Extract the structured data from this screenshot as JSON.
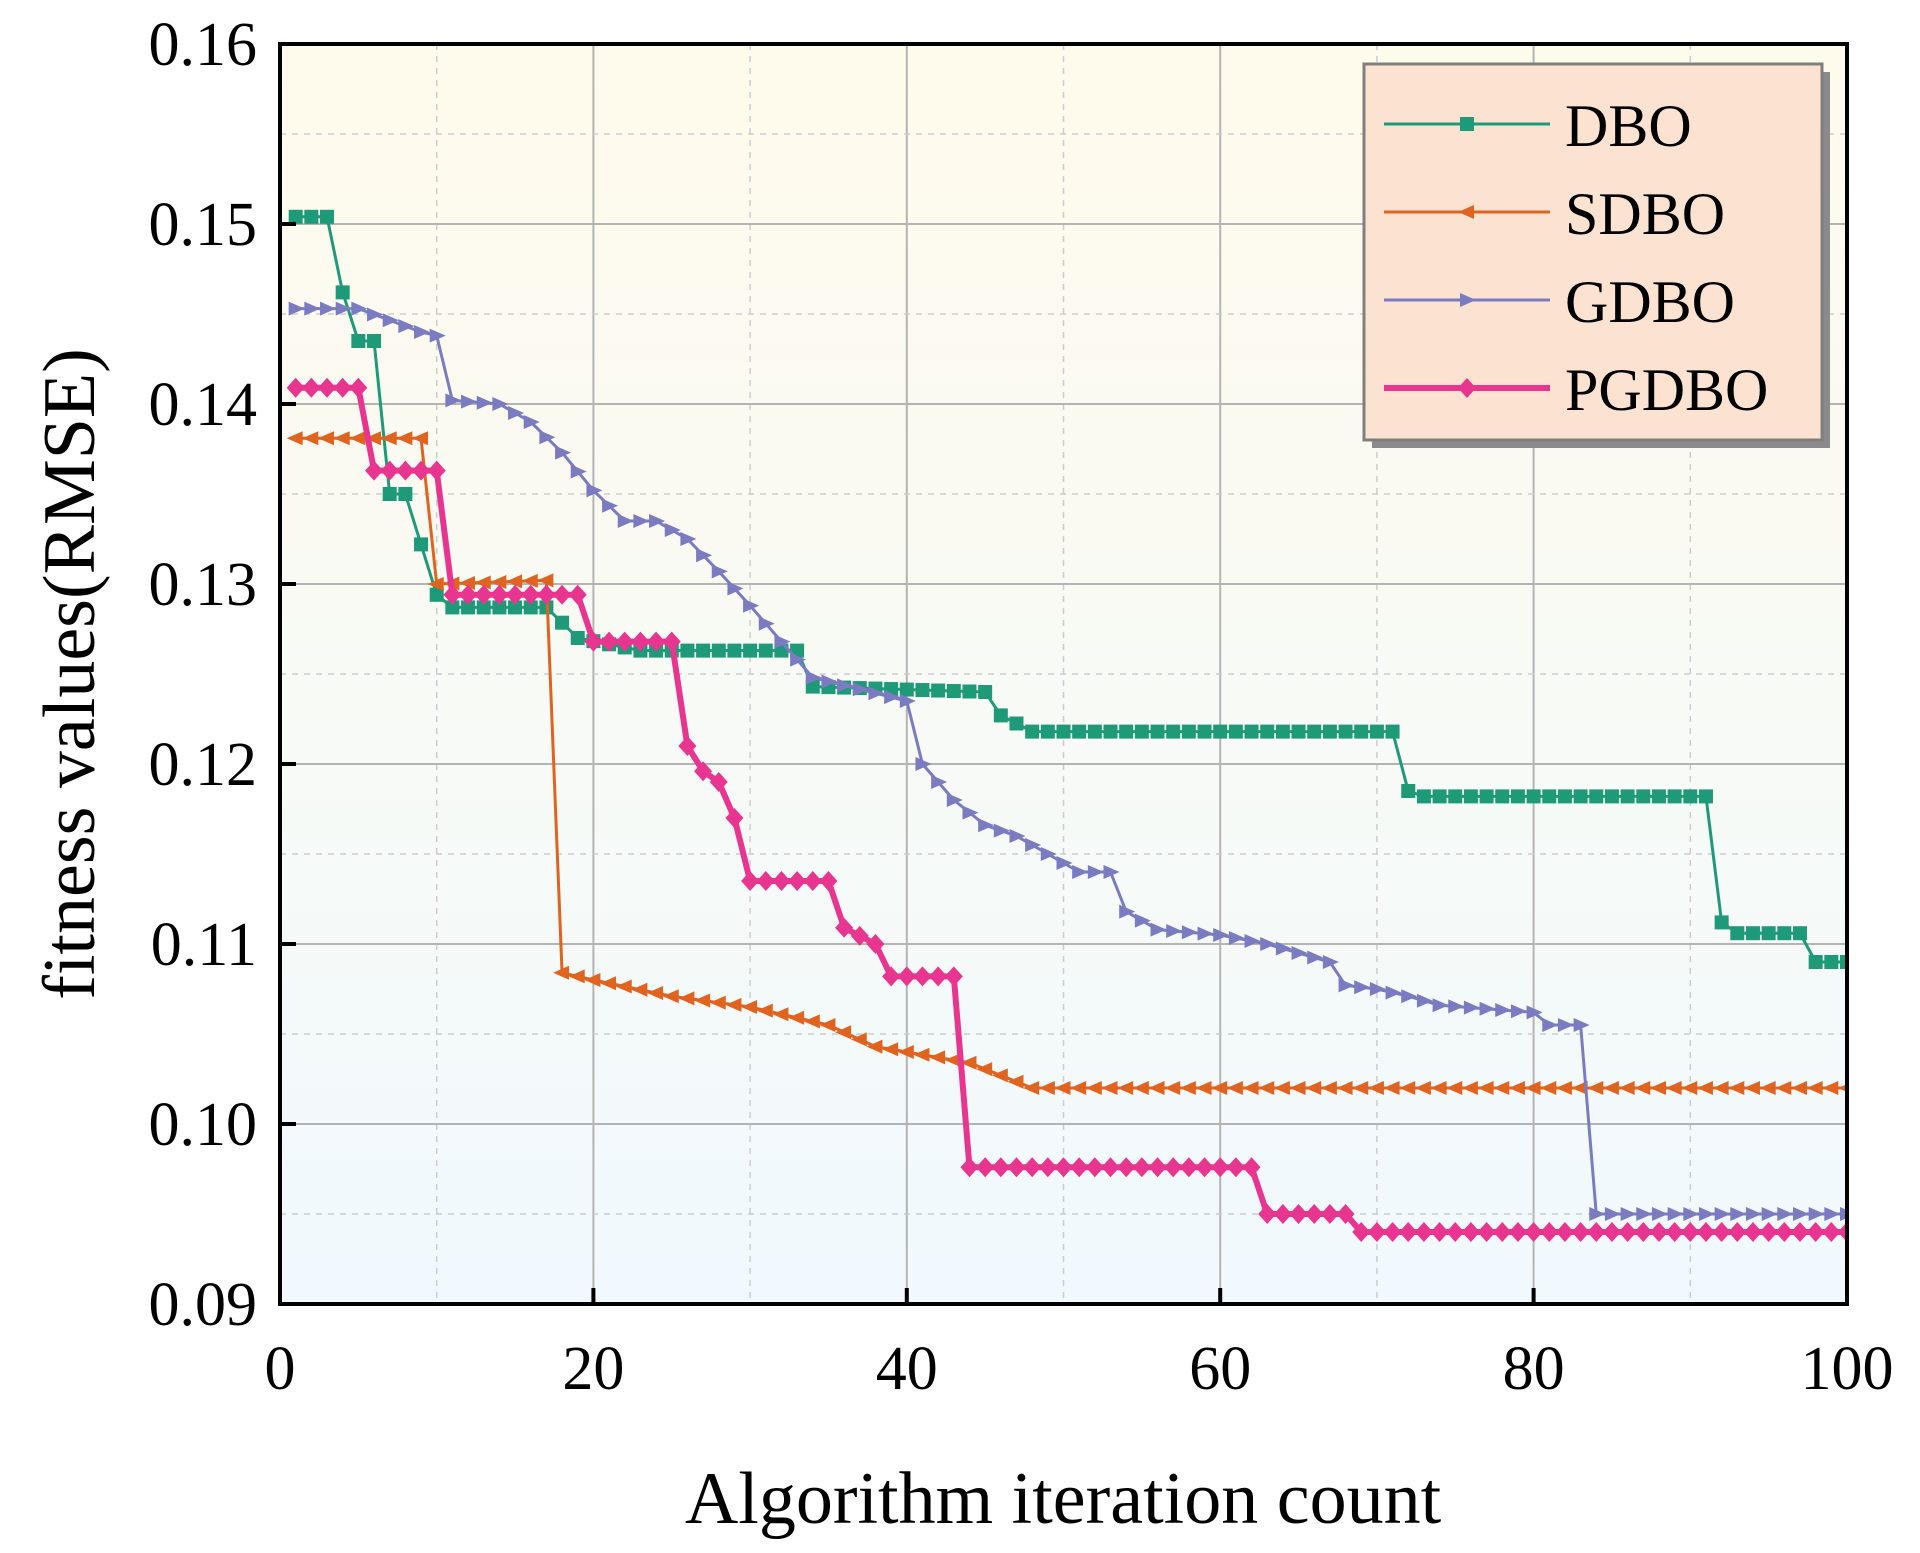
{
  "chart_data": {
    "type": "line",
    "title": "",
    "xlabel": "Algorithm iteration count",
    "ylabel": "fitness values(RMSE)",
    "xlim": [
      0,
      100
    ],
    "ylim": [
      0.09,
      0.16
    ],
    "xticks": [
      0,
      20,
      40,
      60,
      80,
      100
    ],
    "xtick_labels": [
      "0",
      "20",
      "40",
      "60",
      "80",
      "100"
    ],
    "yticks": [
      0.09,
      0.1,
      0.11,
      0.12,
      0.13,
      0.14,
      0.15,
      0.16
    ],
    "ytick_labels": [
      "0.09",
      "0.10",
      "0.11",
      "0.12",
      "0.13",
      "0.14",
      "0.15",
      "0.16"
    ],
    "grid": true,
    "legend_position": "top-right",
    "background": "gradient from light yellow (top) to light blue (bottom)",
    "series": [
      {
        "name": "DBO",
        "color": "#1f9a78",
        "marker": "square",
        "x": [
          1,
          3,
          4,
          5,
          6,
          7,
          8,
          9,
          10,
          11,
          12,
          17,
          19,
          23,
          30,
          33,
          34,
          45,
          46,
          48,
          71,
          72,
          73,
          91,
          92,
          93,
          97,
          98,
          100
        ],
        "y": [
          0.1504,
          0.1504,
          0.1462,
          0.1435,
          0.1435,
          0.135,
          0.135,
          0.1322,
          0.1294,
          0.1287,
          0.1287,
          0.1287,
          0.127,
          0.1263,
          0.1263,
          0.1263,
          0.1243,
          0.124,
          0.1227,
          0.1218,
          0.1218,
          0.1185,
          0.1182,
          0.1182,
          0.1112,
          0.1106,
          0.1106,
          0.109,
          0.109
        ]
      },
      {
        "name": "SDBO",
        "color": "#e0631f",
        "marker": "left-triangle",
        "x": [
          1,
          9,
          10,
          17,
          18,
          20,
          25,
          30,
          35,
          38,
          40,
          44,
          48,
          100
        ],
        "y": [
          0.1381,
          0.1381,
          0.13,
          0.1302,
          0.1084,
          0.108,
          0.1071,
          0.1065,
          0.1055,
          0.1043,
          0.104,
          0.1034,
          0.102,
          0.102
        ]
      },
      {
        "name": "GDBO",
        "color": "#7b7bc2",
        "marker": "right-triangle",
        "x": [
          1,
          5,
          9,
          10,
          11,
          14,
          16,
          18,
          20,
          22,
          24,
          26,
          28,
          30,
          32,
          34,
          40,
          41,
          43,
          45,
          47,
          49,
          51,
          53,
          54,
          56,
          60,
          63,
          65,
          67,
          68,
          70,
          72,
          74,
          80,
          81,
          83,
          84,
          100
        ],
        "y": [
          0.1453,
          0.1453,
          0.144,
          0.1438,
          0.1402,
          0.14,
          0.139,
          0.1373,
          0.1352,
          0.1335,
          0.1335,
          0.1325,
          0.1307,
          0.1288,
          0.1268,
          0.1248,
          0.1235,
          0.12,
          0.118,
          0.1166,
          0.116,
          0.115,
          0.114,
          0.114,
          0.1118,
          0.1108,
          0.1105,
          0.11,
          0.1095,
          0.109,
          0.1077,
          0.1075,
          0.1071,
          0.1066,
          0.1062,
          0.1055,
          0.1055,
          0.095,
          0.095
        ]
      },
      {
        "name": "PGDBO",
        "color": "#e8358f",
        "marker": "diamond",
        "x": [
          1,
          5,
          6,
          9,
          10,
          11,
          18,
          19,
          20,
          25,
          26,
          27,
          28,
          29,
          30,
          35,
          36,
          38,
          39,
          43,
          44,
          62,
          63,
          68,
          69,
          100
        ],
        "y": [
          0.1409,
          0.1409,
          0.1363,
          0.1363,
          0.1363,
          0.1294,
          0.1294,
          0.1294,
          0.1268,
          0.1268,
          0.121,
          0.1196,
          0.119,
          0.117,
          0.1135,
          0.1135,
          0.1109,
          0.11,
          0.1082,
          0.1082,
          0.0976,
          0.0976,
          0.095,
          0.095,
          0.094,
          0.094
        ]
      }
    ]
  }
}
